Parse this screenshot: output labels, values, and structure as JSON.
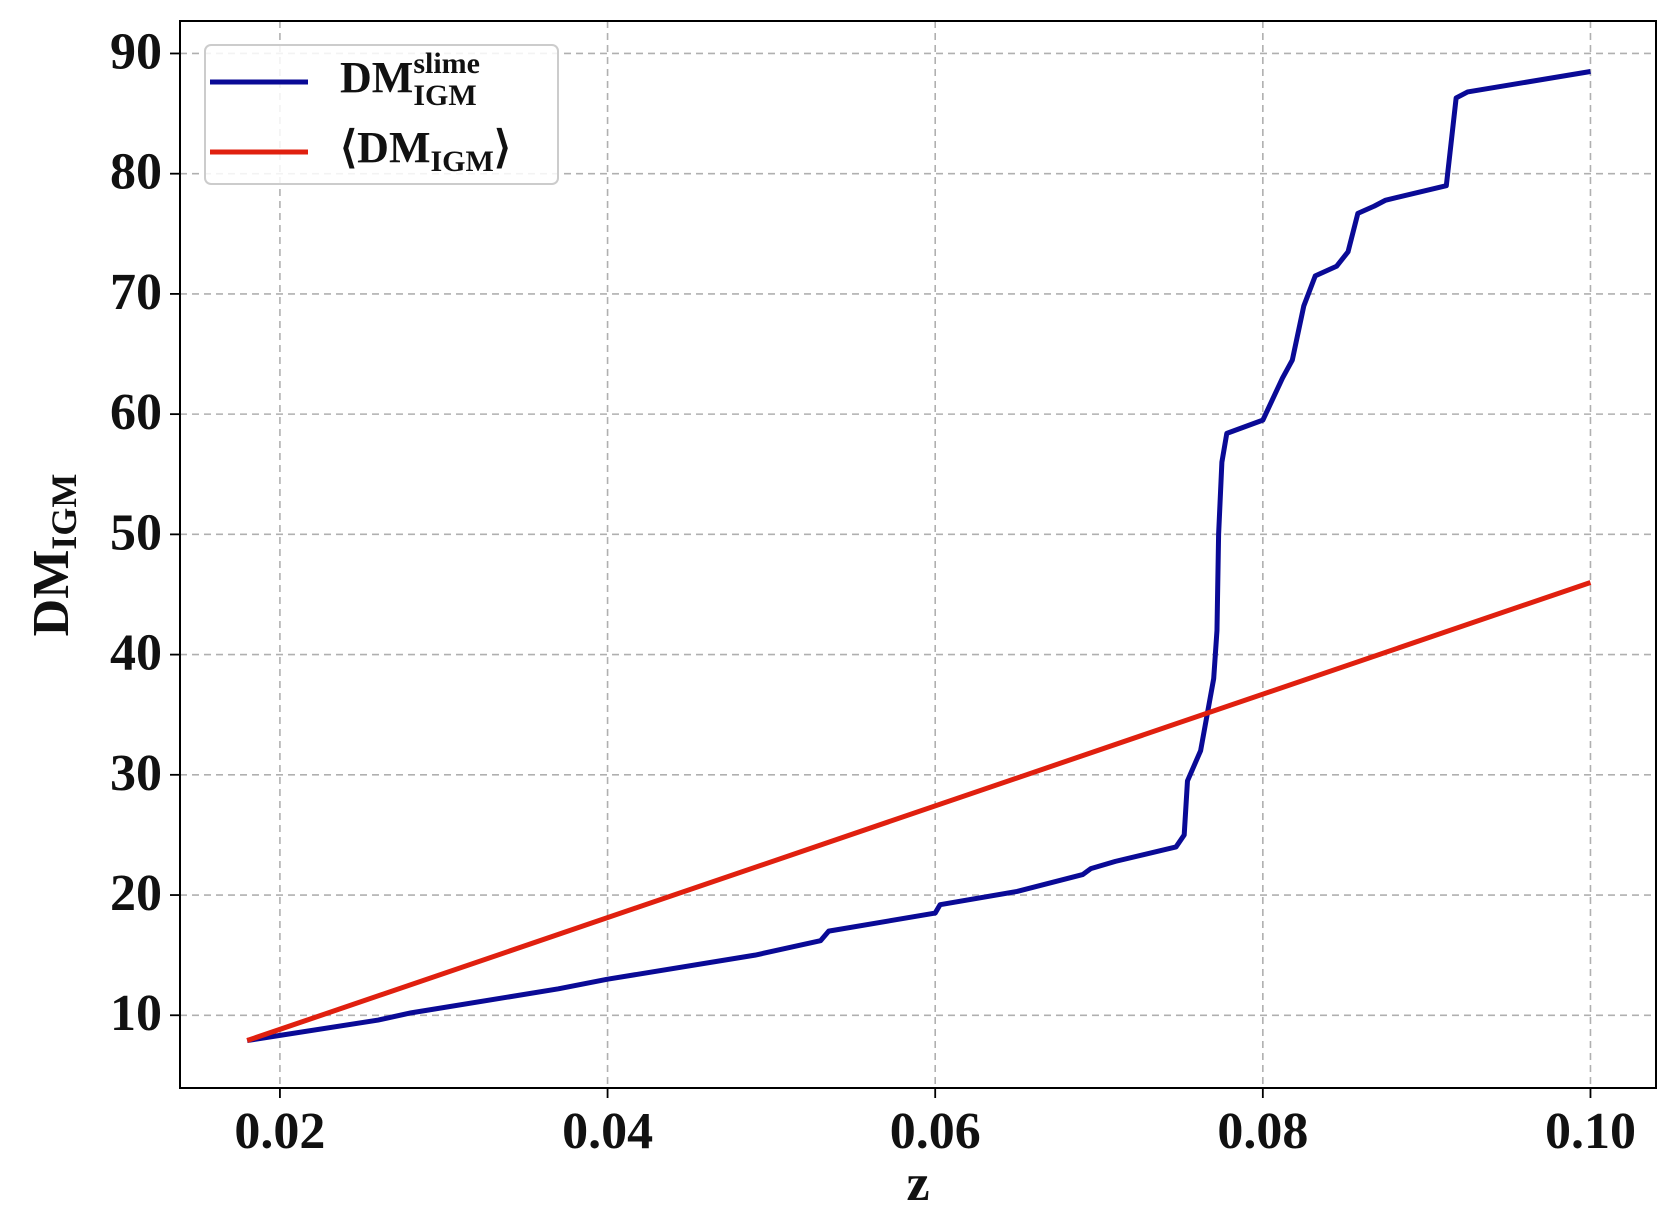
{
  "chart_data": {
    "type": "line",
    "xlabel": "z",
    "ylabel": {
      "main": "DM",
      "sub": "IGM"
    },
    "xlim": [
      0.0139,
      0.104
    ],
    "ylim": [
      3.95,
      92.7
    ],
    "xticks": [
      0.02,
      0.04,
      0.06,
      0.08,
      {
        "value": 0.1,
        "label": "0.10"
      }
    ],
    "yticks": [
      10,
      20,
      30,
      40,
      50,
      60,
      70,
      80,
      90
    ],
    "grid": true,
    "legend": "upper left",
    "series": [
      {
        "name": "DM",
        "name_sub": "IGM",
        "name_sup": "slime",
        "color": "#0a0a96",
        "x": [
          0.018,
          0.026,
          0.028,
          0.037,
          0.04,
          0.049,
          0.053,
          0.0535,
          0.06,
          0.0603,
          0.065,
          0.069,
          0.0695,
          0.071,
          0.0747,
          0.0752,
          0.0754,
          0.0762,
          0.0766,
          0.077,
          0.0772,
          0.0773,
          0.0775,
          0.0778,
          0.08,
          0.0812,
          0.0818,
          0.0825,
          0.0832,
          0.0845,
          0.0852,
          0.0858,
          0.0868,
          0.0875,
          0.0912,
          0.0918,
          0.0925,
          0.1
        ],
        "values": [
          7.9,
          9.6,
          10.2,
          12.2,
          13.0,
          15.0,
          16.2,
          17.0,
          18.5,
          19.2,
          20.3,
          21.7,
          22.2,
          22.8,
          24.0,
          25.0,
          29.5,
          32.0,
          35.0,
          38.0,
          42.0,
          50.0,
          56.0,
          58.4,
          59.5,
          63.0,
          64.5,
          69.0,
          71.5,
          72.3,
          73.5,
          76.7,
          77.3,
          77.8,
          79.0,
          86.3,
          86.8,
          88.5
        ]
      },
      {
        "name": "⟨DM",
        "name_sub": "IGM",
        "name_suffix": "⟩",
        "color": "#e0200f",
        "x": [
          0.018,
          0.1
        ],
        "values": [
          7.9,
          46.0
        ]
      }
    ]
  }
}
